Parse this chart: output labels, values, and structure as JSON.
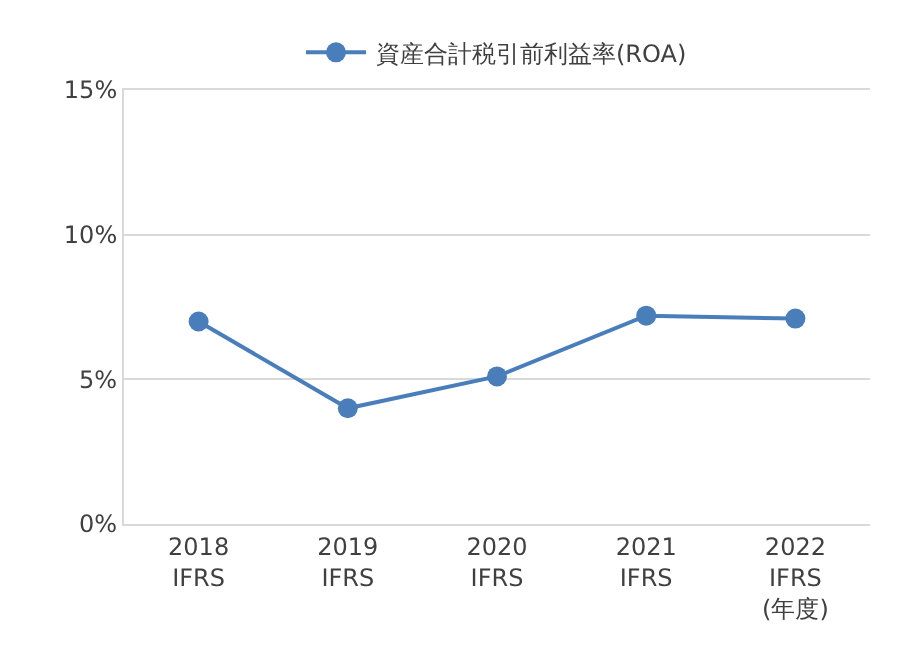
{
  "chart_data": {
    "type": "line",
    "categories": [
      "2018\nIFRS",
      "2019\nIFRS",
      "2020\nIFRS",
      "2021\nIFRS",
      "2022\nIFRS\n(年度)"
    ],
    "series": [
      {
        "name": "資産合計税引前利益率(ROA)",
        "color": "#4a7ebb",
        "values": [
          7.0,
          4.0,
          5.1,
          7.2,
          7.1
        ]
      }
    ],
    "ylim": [
      0,
      15
    ],
    "yticks": [
      {
        "value": 0,
        "label": "0%"
      },
      {
        "value": 5,
        "label": "5%"
      },
      {
        "value": 10,
        "label": "10%"
      },
      {
        "value": 15,
        "label": "15%"
      }
    ],
    "grid": "y",
    "legend": "top",
    "marker": "circle",
    "line_style": "solid"
  }
}
